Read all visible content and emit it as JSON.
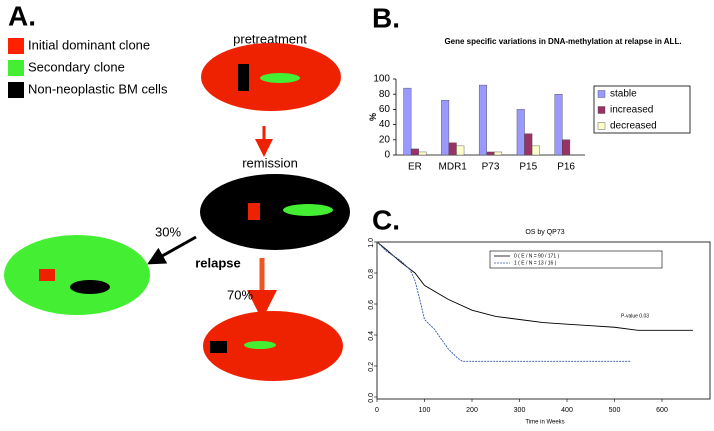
{
  "panel_labels": [
    "A.",
    "B.",
    "C."
  ],
  "diagram": {
    "legend": [
      {
        "label": "Initial dominant clone",
        "color": "#ff2200"
      },
      {
        "label": "Secondary clone",
        "color": "#44ee33"
      },
      {
        "label": "Non-neoplastic BM cells",
        "color": "#000000"
      }
    ],
    "stages": [
      "pretreatment",
      "remission"
    ],
    "relapse_label": "relapse",
    "branches": [
      "30%",
      "70%"
    ]
  },
  "chart_data": [
    {
      "type": "bar",
      "title": "Gene specific variations in DNA-methylation at relapse in ALL.",
      "y_label": "%",
      "categories": [
        "ER",
        "MDR1",
        "P73",
        "P15",
        "P16"
      ],
      "series": [
        {
          "name": "stable",
          "color": "#9999ff",
          "values": [
            88,
            72,
            92,
            60,
            80
          ]
        },
        {
          "name": "increased",
          "color": "#993366",
          "values": [
            8,
            16,
            4,
            28,
            20
          ]
        },
        {
          "name": "decreased",
          "color": "#ffffcc",
          "values": [
            4,
            12,
            4,
            12,
            0
          ]
        }
      ],
      "ylim": [
        0,
        100
      ],
      "yticks": [
        0,
        20,
        40,
        60,
        80,
        100
      ],
      "legend": "right"
    },
    {
      "type": "line",
      "title": "OS by QP73",
      "x_label": "Time in Weeks",
      "annotation": "P-value 0.03",
      "series": [
        {
          "name": "0 ( E / N = 90 / 171 )",
          "color": "#000000",
          "dashed": false,
          "x": [
            0,
            20,
            50,
            80,
            100,
            150,
            200,
            250,
            300,
            350,
            400,
            450,
            500,
            550,
            600,
            665
          ],
          "values": [
            1.0,
            0.95,
            0.87,
            0.8,
            0.72,
            0.63,
            0.56,
            0.52,
            0.5,
            0.48,
            0.47,
            0.46,
            0.45,
            0.43,
            0.43,
            0.43
          ]
        },
        {
          "name": "1 ( E / N = 13 / 16 )",
          "color": "#3355aa",
          "dashed": true,
          "x": [
            0,
            20,
            50,
            70,
            80,
            90,
            100,
            120,
            150,
            170,
            180,
            280,
            480,
            500,
            535
          ],
          "values": [
            1.0,
            0.94,
            0.88,
            0.82,
            0.75,
            0.63,
            0.5,
            0.44,
            0.31,
            0.25,
            0.23,
            0.23,
            0.23,
            0.23,
            0.23
          ]
        }
      ],
      "xlim": [
        0,
        700
      ],
      "xticks": [
        0,
        100,
        200,
        300,
        400,
        500,
        600
      ],
      "ylim": [
        0,
        1.0
      ],
      "yticks": [
        {
          "value": 0,
          "label": "0.0"
        },
        0.2,
        0.4,
        0.6,
        0.8,
        {
          "value": 1,
          "label": "1.0"
        }
      ],
      "legend": "top"
    }
  ]
}
